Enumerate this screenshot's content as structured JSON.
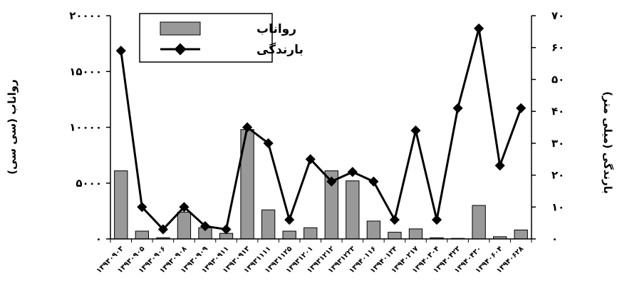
{
  "chart_data": {
    "type": "bar+line",
    "categories": [
      "۱۳۹۳۰۹۰۳",
      "۱۳۹۳۰۹۰۵",
      "۱۳۹۳۰۹۰۶",
      "۱۳۹۳۰۹۰۸",
      "۱۳۹۳۰۹۰۹",
      "۱۳۹۳۰۹۱۱",
      "۱۳۹۳۰۹۱۳",
      "۱۳۹۳۱۱۱۱",
      "۱۳۹۳۱۱۲۵",
      "۱۳۹۳۱۲۰۱",
      "۱۳۹۳۱۲۱۲",
      "۱۳۹۳۱۲۲۳",
      "۱۳۹۴۰۱۱۶",
      "۱۳۹۴۰۱۲۴",
      "۱۳۹۴۰۲۱۷",
      "۱۳۹۴۰۳۰۴",
      "۱۳۹۴۰۴۲۳",
      "۱۳۹۴۰۴۳۰",
      "۱۳۹۴۰۶۰۴",
      "۱۳۹۴۰۶۲۸"
    ],
    "series": [
      {
        "name": "رواناب",
        "kind": "bar",
        "axis": "left",
        "color": "#999999",
        "values": [
          6100,
          700,
          100,
          2400,
          1000,
          500,
          9800,
          2600,
          700,
          1000,
          6100,
          5200,
          1600,
          600,
          900,
          100,
          50,
          3000,
          200,
          800
        ]
      },
      {
        "name": "بارندگی",
        "kind": "line",
        "axis": "right",
        "color": "#000000",
        "values": [
          59,
          10,
          3,
          10,
          4,
          3,
          35,
          30,
          6,
          25,
          18,
          21,
          18,
          6,
          34,
          6,
          41,
          66,
          23,
          41
        ]
      }
    ],
    "ylabel_left": "رواناب (سی سی)",
    "ylabel_right": "بارندگی (میلی متر)",
    "ylim_left": [
      0,
      20000
    ],
    "ylim_right": [
      0,
      70
    ],
    "yticks_left": [
      "۰",
      "۵۰۰۰",
      "۱۰۰۰۰",
      "۱۵۰۰۰",
      "۲۰۰۰۰"
    ],
    "yticks_left_values": [
      0,
      5000,
      10000,
      15000,
      20000
    ],
    "yticks_right": [
      "۰",
      "۱۰",
      "۲۰",
      "۳۰",
      "۴۰",
      "۵۰",
      "۶۰",
      "۷۰"
    ],
    "yticks_right_values": [
      0,
      10,
      20,
      30,
      40,
      50,
      60,
      70
    ],
    "legend_position": "top-left",
    "grid": false
  }
}
